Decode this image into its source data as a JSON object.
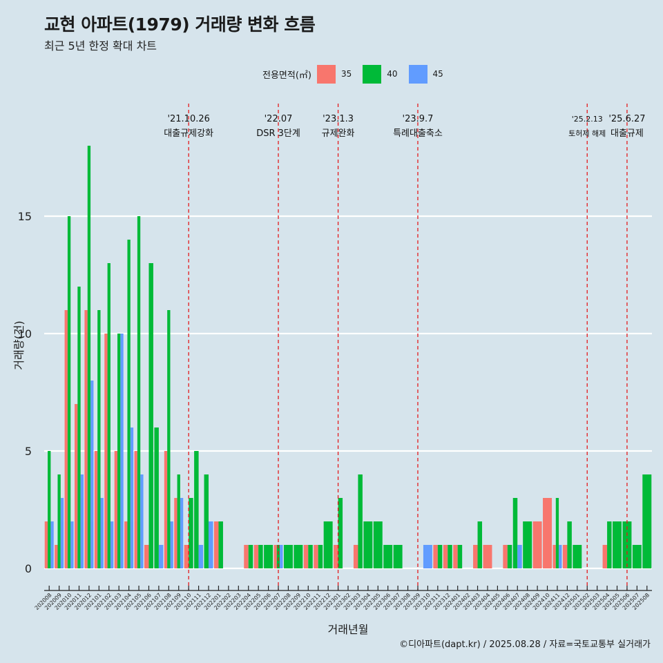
{
  "title": "교현 아파트(1979) 거래량 변화 흐름",
  "subtitle": "최근 5년 한정 확대 차트",
  "legend": {
    "title": "전용면적(㎡)",
    "items": [
      "35",
      "40",
      "45"
    ]
  },
  "caption": "©디아파트(dapt.kr) / 2025.08.28 / 자료=국토교통부 실거래가",
  "colors": {
    "35": "#f8766d",
    "40": "#00ba38",
    "45": "#619cff",
    "background": "#d6e4ec",
    "event_line": "#e41a1c"
  },
  "chart_data": {
    "type": "bar",
    "title": "교현 아파트(1979) 거래량 변화 흐름",
    "subtitle": "최근 5년 한정 확대 차트",
    "xlabel": "거래년월",
    "ylabel": "거래량(건)",
    "ylim": [
      0,
      18
    ],
    "yticks": [
      0,
      5,
      10,
      15
    ],
    "grid": "horizontal",
    "legend_position": "top",
    "categories": [
      "202008",
      "202009",
      "202010",
      "202011",
      "202012",
      "202101",
      "202102",
      "202103",
      "202104",
      "202105",
      "202106",
      "202107",
      "202108",
      "202109",
      "202110",
      "202111",
      "202112",
      "202201",
      "202202",
      "202203",
      "202204",
      "202205",
      "202206",
      "202207",
      "202208",
      "202209",
      "202210",
      "202211",
      "202212",
      "202301",
      "202302",
      "202303",
      "202304",
      "202305",
      "202306",
      "202307",
      "202308",
      "202309",
      "202310",
      "202311",
      "202312",
      "202401",
      "202402",
      "202403",
      "202404",
      "202405",
      "202406",
      "202407",
      "202408",
      "202409",
      "202410",
      "202411",
      "202412",
      "202501",
      "202502",
      "202503",
      "202504",
      "202505",
      "202506",
      "202507",
      "202508"
    ],
    "series": [
      {
        "name": "35",
        "values": [
          2,
          1,
          11,
          7,
          11,
          5,
          10,
          5,
          2,
          5,
          1,
          0,
          5,
          3,
          1,
          0,
          0,
          2,
          0,
          0,
          1,
          1,
          0,
          1,
          0,
          0,
          1,
          1,
          0,
          1,
          0,
          1,
          0,
          0,
          0,
          0,
          0,
          0,
          0,
          1,
          1,
          1,
          0,
          1,
          1,
          0,
          1,
          0,
          0,
          2,
          3,
          1,
          1,
          0,
          0,
          0,
          1,
          0,
          0,
          0,
          0
        ]
      },
      {
        "name": "40",
        "values": [
          5,
          4,
          15,
          12,
          18,
          11,
          13,
          10,
          14,
          15,
          13,
          6,
          11,
          4,
          3,
          5,
          4,
          2,
          0,
          0,
          1,
          1,
          1,
          1,
          1,
          1,
          1,
          1,
          2,
          3,
          0,
          4,
          2,
          2,
          1,
          1,
          0,
          0,
          0,
          1,
          1,
          1,
          0,
          2,
          0,
          0,
          1,
          3,
          2,
          0,
          0,
          3,
          2,
          1,
          0,
          0,
          2,
          2,
          2,
          1,
          4
        ]
      },
      {
        "name": "45",
        "values": [
          2,
          3,
          2,
          4,
          8,
          3,
          2,
          10,
          6,
          4,
          0,
          1,
          2,
          3,
          0,
          1,
          2,
          0,
          0,
          0,
          0,
          0,
          0,
          1,
          0,
          0,
          0,
          0,
          0,
          0,
          0,
          0,
          0,
          0,
          0,
          0,
          0,
          0,
          1,
          0,
          0,
          0,
          0,
          0,
          0,
          0,
          0,
          1,
          0,
          0,
          0,
          1,
          0,
          0,
          0,
          0,
          0,
          0,
          0,
          0,
          0
        ]
      }
    ],
    "annotations": [
      {
        "date": "'21.10.26",
        "label": "대출규제강화",
        "position": 14.5
      },
      {
        "date": "'22.07",
        "label": "DSR 3단계",
        "position": 23.5
      },
      {
        "date": "'23.1.3",
        "label": "규제완화",
        "position": 29.5
      },
      {
        "date": "'23.9.7",
        "label": "특례대출축소",
        "position": 37.5
      },
      {
        "date": "'25.2.13",
        "label": "토허제 해제",
        "position": 54.5
      },
      {
        "date": "'25.6.27",
        "label": "대출규제",
        "position": 58.5
      }
    ]
  }
}
